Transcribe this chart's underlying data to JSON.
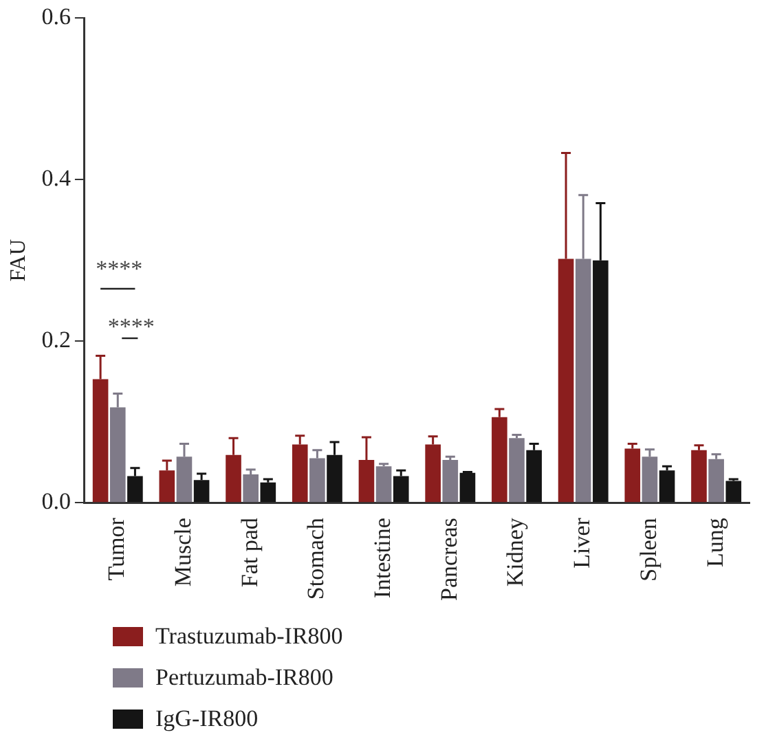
{
  "chart_data": {
    "type": "bar",
    "ylabel": "FAU",
    "categories": [
      "Tumor",
      "Muscle",
      "Fat pad",
      "Stomach",
      "Intestine",
      "Pancreas",
      "Kidney",
      "Liver",
      "Spleen",
      "Lung"
    ],
    "series": [
      {
        "name": "Trastuzumab-IR800",
        "color": "#8b1e1e",
        "values": [
          0.153,
          0.04,
          0.059,
          0.072,
          0.053,
          0.072,
          0.106,
          0.302,
          0.067,
          0.065
        ],
        "errors": [
          [
            0.153,
            0.182
          ],
          [
            0.04,
            0.052
          ],
          [
            0.059,
            0.08
          ],
          [
            0.072,
            0.083
          ],
          [
            0.053,
            0.081
          ],
          [
            0.072,
            0.082
          ],
          [
            0.106,
            0.116
          ],
          [
            0.302,
            0.433
          ],
          [
            0.067,
            0.073
          ],
          [
            0.065,
            0.071
          ]
        ]
      },
      {
        "name": "Pertuzumab-IR800",
        "color": "#7f7a88",
        "values": [
          0.118,
          0.057,
          0.035,
          0.055,
          0.045,
          0.053,
          0.08,
          0.302,
          0.057,
          0.054
        ],
        "errors": [
          [
            0.118,
            0.135
          ],
          [
            0.057,
            0.073
          ],
          [
            0.035,
            0.041
          ],
          [
            0.055,
            0.065
          ],
          [
            0.045,
            0.048
          ],
          [
            0.053,
            0.057
          ],
          [
            0.08,
            0.084
          ],
          [
            0.302,
            0.381
          ],
          [
            0.057,
            0.066
          ],
          [
            0.054,
            0.06
          ]
        ]
      },
      {
        "name": "IgG-IR800",
        "color": "#151515",
        "values": [
          0.033,
          0.028,
          0.025,
          0.059,
          0.033,
          0.037,
          0.065,
          0.3,
          0.04,
          0.027
        ],
        "errors": [
          [
            0.033,
            0.043
          ],
          [
            0.028,
            0.036
          ],
          [
            0.025,
            0.029
          ],
          [
            0.059,
            0.075
          ],
          [
            0.033,
            0.04
          ],
          [
            0.037,
            0.038
          ],
          [
            0.065,
            0.073
          ],
          [
            0.3,
            0.371
          ],
          [
            0.04,
            0.045
          ],
          [
            0.027,
            0.029
          ]
        ]
      }
    ],
    "annotations": [
      "****",
      "****"
    ],
    "ylim": [
      0,
      0.6
    ],
    "yticks": [
      {
        "value": 0,
        "label": "0.0"
      },
      {
        "value": 0.2,
        "label": "0.2"
      },
      {
        "value": 0.4,
        "label": "0.4"
      },
      {
        "value": 0.6,
        "label": "0.6"
      }
    ],
    "grid": false,
    "legend": "bottom"
  }
}
